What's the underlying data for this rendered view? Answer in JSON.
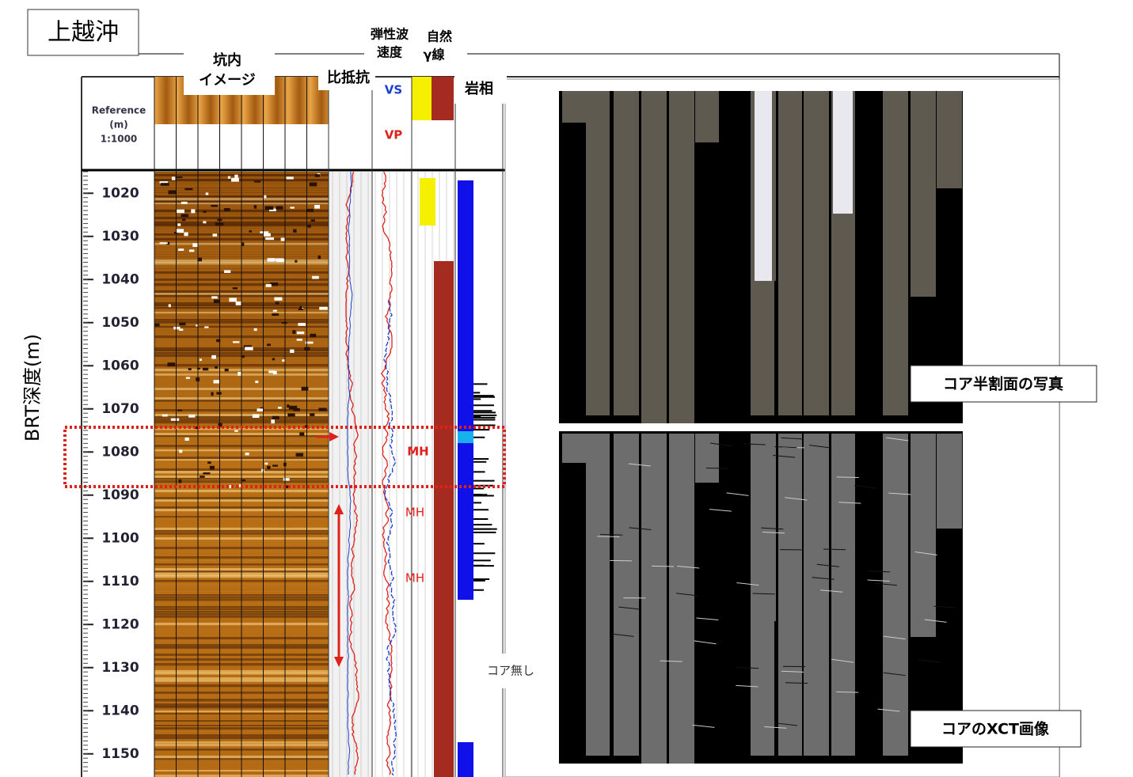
{
  "title": "上越沖",
  "depth_axis": {
    "label": "BRT深度(m)",
    "header": [
      "Reference",
      "(m)",
      "1:1000"
    ],
    "range": [
      1015,
      1155
    ],
    "ticks": [
      1020,
      1030,
      1040,
      1050,
      1060,
      1070,
      1080,
      1090,
      1100,
      1110,
      1120,
      1130,
      1140,
      1150
    ]
  },
  "track_headers": {
    "image": [
      "坑内",
      "イメージ"
    ],
    "resistivity": "比抵抗",
    "velocity": [
      "弾性波",
      "速度"
    ],
    "gamma": [
      "自然",
      "γ線"
    ],
    "lithology": "岩相"
  },
  "curve_labels": {
    "vs": "VS",
    "vp": "VP"
  },
  "annotations": {
    "mh": [
      "MH",
      "MH",
      "MH"
    ],
    "no_core": "コア無し"
  },
  "panels": {
    "photo": "コア半割面の写真",
    "xct": "コアのXCT画像"
  }
}
